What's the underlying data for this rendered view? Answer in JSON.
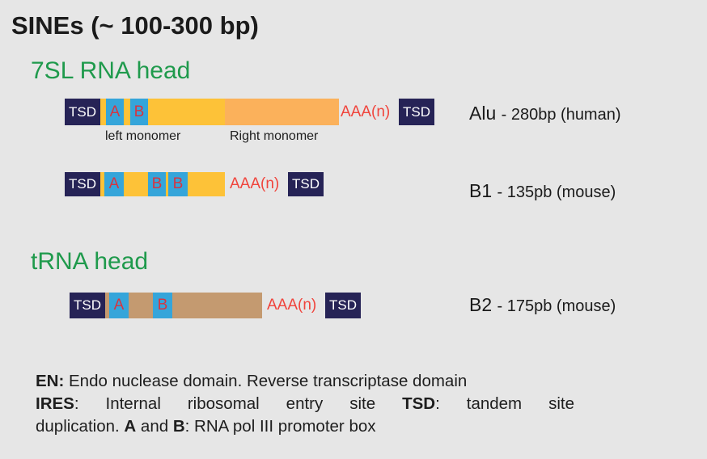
{
  "title": "SINEs (~ 100-300 bp)",
  "colors": {
    "background": "#e6e6e6",
    "section_green": "#1f9a4c",
    "tsd": "#262356",
    "promoter_box": "#35a5da",
    "promoter_text": "#d63540",
    "polya_text": "#f0443c",
    "left_monomer": "#fdc238",
    "right_monomer": "#fbb15b",
    "b1_body": "#fdc238",
    "b2_body": "#c49a70"
  },
  "sections": {
    "head_7sl": "7SL RNA head",
    "head_trna": "tRNA head"
  },
  "elements": {
    "alu": {
      "tsd_left": "TSD",
      "box_a": "A",
      "box_b": "B",
      "polya": "AAA(n)",
      "tsd_right": "TSD",
      "left_monomer": "left monomer",
      "right_monomer": "Right monomer",
      "name": "Alu",
      "desc": "- 280bp (human)"
    },
    "b1": {
      "tsd_left": "TSD",
      "box_a": "A",
      "box_b1": "B",
      "box_b2": "B",
      "polya": "AAA(n)",
      "tsd_right": "TSD",
      "name": "B1",
      "desc": "- 135pb (mouse)"
    },
    "b2": {
      "tsd_left": "TSD",
      "box_a": "A",
      "box_b": "B",
      "polya": "AAA(n)",
      "tsd_right": "TSD",
      "name": "B2",
      "desc": "- 175pb (mouse)"
    }
  },
  "legend": {
    "en_term": "EN:",
    "en_text": " Endo nuclease domain. Reverse transcriptase domain",
    "ires_term": "IRES",
    "ires_text": ": Internal ribosomal entry site ",
    "tsd_term": "TSD",
    "tsd_text": ": tandem site",
    "dup_text": "duplication. ",
    "a_term": "A",
    "and_text": " and ",
    "b_term": "B",
    "promoter_text": ": RNA pol III promoter box"
  }
}
